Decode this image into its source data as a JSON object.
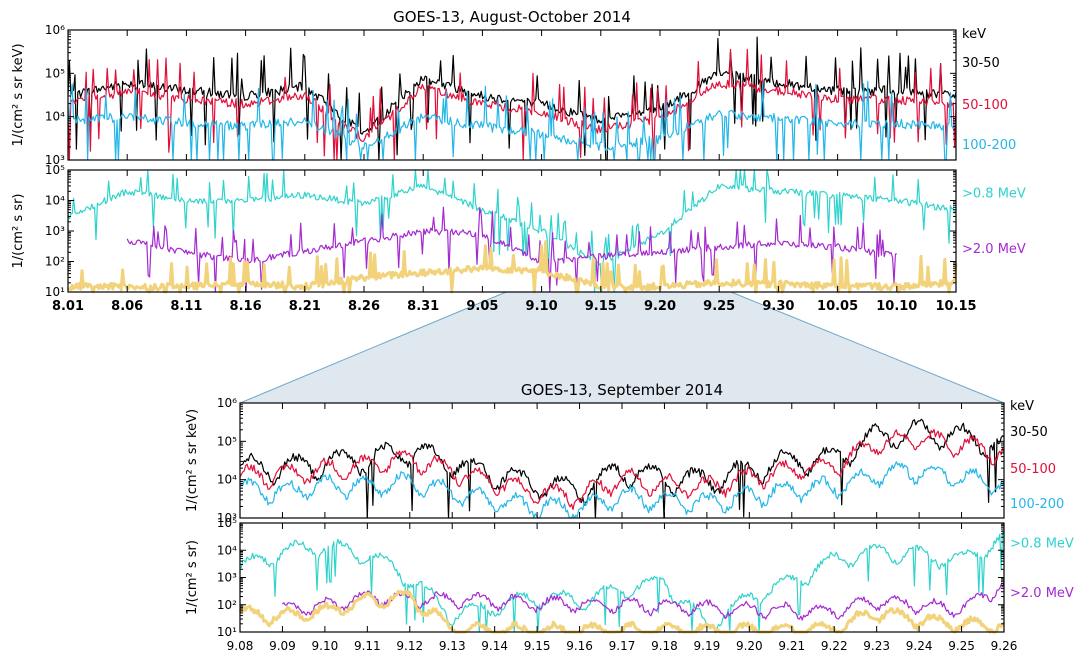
{
  "colors": {
    "c30_50": "#000000",
    "c50_100": "#e0103a",
    "c100_200": "#25b6e8",
    "c08": "#2fd3cc",
    "c20": "#a42ad0",
    "cbg": "#f2d27a",
    "zoom_fill": "#dfe7ef",
    "zoom_edge": "#6aa8c8"
  },
  "chart_data": [
    {
      "type": "line",
      "title": "GOES-13, August-October 2014",
      "x_tick_labels": [
        "8.01",
        "8.06",
        "8.11",
        "8.16",
        "8.21",
        "8.26",
        "8.31",
        "9.05",
        "9.10",
        "9.15",
        "9.20",
        "9.25",
        "9.30",
        "10.05",
        "10.10",
        "10.15"
      ],
      "top_panel": {
        "ylabel": "1/(cm² s sr keV)",
        "unit_label": "keV",
        "yscale": "log",
        "ylim": [
          1000,
          1000000
        ],
        "y_tick_labels": [
          "10³",
          "10⁴",
          "10⁵",
          "10⁶"
        ],
        "series": [
          {
            "name": "30-50",
            "x": [
              "8.01",
              "8.06",
              "8.11",
              "8.16",
              "8.21",
              "8.26",
              "8.31",
              "9.05",
              "9.10",
              "9.15",
              "9.20",
              "9.25",
              "9.30",
              "10.05",
              "10.10",
              "10.15"
            ],
            "values": [
              30000,
              60000,
              40000,
              30000,
              50000,
              4000,
              80000,
              30000,
              20000,
              8000,
              15000,
              100000,
              60000,
              40000,
              40000,
              30000
            ]
          },
          {
            "name": "50-100",
            "x": [
              "8.01",
              "8.06",
              "8.11",
              "8.16",
              "8.21",
              "8.26",
              "8.31",
              "9.05",
              "9.10",
              "9.15",
              "9.20",
              "9.25",
              "9.30",
              "10.05",
              "10.10",
              "10.15"
            ],
            "values": [
              20000,
              40000,
              25000,
              20000,
              30000,
              3000,
              50000,
              20000,
              12000,
              5000,
              9000,
              60000,
              40000,
              25000,
              25000,
              20000
            ]
          },
          {
            "name": "100-200",
            "x": [
              "8.01",
              "8.06",
              "8.11",
              "8.16",
              "8.21",
              "8.26",
              "8.31",
              "9.05",
              "9.10",
              "9.15",
              "9.20",
              "9.25",
              "9.30",
              "10.05",
              "10.10",
              "10.15"
            ],
            "values": [
              8000,
              10000,
              7000,
              6000,
              8000,
              2000,
              10000,
              6000,
              4000,
              2000,
              3000,
              12000,
              9000,
              7000,
              7000,
              6000
            ]
          }
        ]
      },
      "bottom_panel": {
        "ylabel": "1/(cm² s sr)",
        "yscale": "log",
        "ylim": [
          10,
          100000
        ],
        "y_tick_labels": [
          "10¹",
          "10²",
          "10³",
          "10⁴",
          "10⁵"
        ],
        "series": [
          {
            "name": ">0.8 MeV",
            "x": [
              "8.01",
              "8.06",
              "8.11",
              "8.16",
              "8.21",
              "8.26",
              "8.31",
              "9.05",
              "9.10",
              "9.15",
              "9.20",
              "9.25",
              "9.30",
              "10.05",
              "10.10",
              "10.15"
            ],
            "values": [
              3000,
              20000,
              10000,
              10000,
              15000,
              8000,
              30000,
              5000,
              1000,
              80,
              800,
              30000,
              20000,
              15000,
              10000,
              5000
            ]
          },
          {
            "name": ">2.0 MeV",
            "x": [
              "8.06",
              "8.11",
              "8.16",
              "8.31",
              "9.05",
              "9.10",
              "9.25",
              "9.30",
              "10.05",
              "10.10"
            ],
            "values": [
              500,
              200,
              100,
              1000,
              800,
              100,
              300,
              400,
              300,
              150
            ]
          },
          {
            "x": [
              "8.01",
              "8.11",
              "8.16",
              "8.21",
              "8.26",
              "9.05",
              "9.10",
              "9.15",
              "9.20",
              "9.25",
              "10.10",
              "10.15"
            ],
            "values": [
              15,
              15,
              20,
              15,
              30,
              60,
              50,
              15,
              15,
              20,
              15,
              20
            ]
          }
        ]
      }
    },
    {
      "type": "line",
      "title": "GOES-13, September 2014",
      "x_tick_labels": [
        "9.08",
        "9.09",
        "9.10",
        "9.11",
        "9.12",
        "9.13",
        "9.14",
        "9.15",
        "9.16",
        "9.17",
        "9.18",
        "9.19",
        "9.20",
        "9.21",
        "9.22",
        "9.23",
        "9.24",
        "9.25",
        "9.26"
      ],
      "top_panel": {
        "ylabel": "1/(cm² s sr keV)",
        "unit_label": "keV",
        "yscale": "log",
        "ylim": [
          1000,
          1000000
        ],
        "y_tick_labels": [
          "10³",
          "10⁴",
          "10⁵",
          "10⁶"
        ],
        "series": [
          {
            "name": "30-50",
            "x": [
              "9.08",
              "9.09",
              "9.10",
              "9.11",
              "9.12",
              "9.13",
              "9.14",
              "9.15",
              "9.16",
              "9.17",
              "9.18",
              "9.19",
              "9.20",
              "9.21",
              "9.22",
              "9.23",
              "9.24",
              "9.25",
              "9.26"
            ],
            "values": [
              25000,
              22000,
              30000,
              40000,
              60000,
              30000,
              15000,
              8000,
              6000,
              20000,
              12000,
              10000,
              20000,
              35000,
              40000,
              150000,
              200000,
              150000,
              80000
            ]
          },
          {
            "name": "50-100",
            "x": [
              "9.08",
              "9.09",
              "9.10",
              "9.11",
              "9.12",
              "9.13",
              "9.14",
              "9.15",
              "9.16",
              "9.17",
              "9.18",
              "9.19",
              "9.20",
              "9.21",
              "9.22",
              "9.23",
              "9.24",
              "9.25",
              "9.26"
            ],
            "values": [
              15000,
              14000,
              20000,
              25000,
              40000,
              18000,
              9000,
              5000,
              4000,
              12000,
              8000,
              7000,
              12000,
              20000,
              25000,
              100000,
              120000,
              90000,
              50000
            ]
          },
          {
            "name": "100-200",
            "x": [
              "9.08",
              "9.09",
              "9.10",
              "9.11",
              "9.12",
              "9.13",
              "9.14",
              "9.15",
              "9.16",
              "9.17",
              "9.18",
              "9.19",
              "9.20",
              "9.21",
              "9.22",
              "9.23",
              "9.24",
              "9.25",
              "9.26"
            ],
            "values": [
              6000,
              5000,
              8000,
              7000,
              9000,
              5000,
              3000,
              2000,
              2000,
              4000,
              3000,
              2500,
              4000,
              6000,
              7000,
              15000,
              18000,
              12000,
              8000
            ]
          }
        ]
      },
      "bottom_panel": {
        "ylabel": "1/(cm² s sr)",
        "yscale": "log",
        "ylim": [
          10,
          100000
        ],
        "y_tick_labels": [
          "10¹",
          "10²",
          "10³",
          "10⁴",
          "10⁵"
        ],
        "series": [
          {
            "name": ">0.8 MeV",
            "x": [
              "9.08",
              "9.09",
              "9.10",
              "9.11",
              "9.12",
              "9.13",
              "9.14",
              "9.15",
              "9.16",
              "9.17",
              "9.18",
              "9.19",
              "9.20",
              "9.21",
              "9.22",
              "9.23",
              "9.24",
              "9.25",
              "9.26"
            ],
            "values": [
              2500,
              10000,
              15000,
              8000,
              1000,
              50,
              100,
              200,
              150,
              400,
              800,
              20,
              200,
              800,
              5000,
              10000,
              8000,
              5000,
              30000
            ]
          },
          {
            "name": ">2.0 MeV",
            "x": [
              "9.09",
              "9.10",
              "9.11",
              "9.22",
              "9.23",
              "9.24",
              "9.25",
              "9.26"
            ],
            "values": [
              70,
              100,
              200,
              60,
              150,
              100,
              80,
              600
            ]
          },
          {
            "x": [
              "9.08",
              "9.09",
              "9.10",
              "9.11",
              "9.12",
              "9.13",
              "9.14",
              "9.15",
              "9.16",
              "9.17",
              "9.18",
              "9.19",
              "9.20",
              "9.21",
              "9.22",
              "9.23",
              "9.24",
              "9.25",
              "9.26"
            ],
            "values": [
              50,
              40,
              60,
              150,
              200,
              15,
              12,
              12,
              12,
              12,
              12,
              12,
              12,
              12,
              15,
              60,
              30,
              20,
              20
            ]
          }
        ]
      }
    }
  ]
}
